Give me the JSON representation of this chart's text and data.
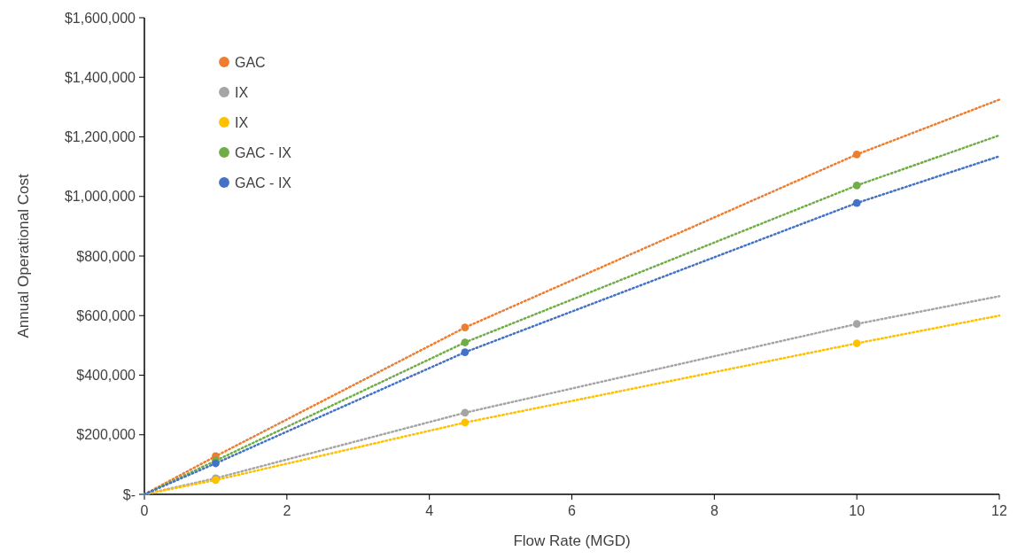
{
  "chart_data": {
    "type": "scatter",
    "xlabel": "Flow Rate (MGD)",
    "ylabel": "Annual Operational Cost",
    "x": [
      1,
      4.5,
      10
    ],
    "series": [
      {
        "name": "GAC",
        "color": "#ed7d31",
        "marker": "circle",
        "values": [
          128000,
          560000,
          1141000
        ]
      },
      {
        "name": "IX",
        "color": "#a5a5a5",
        "marker": "circle",
        "values": [
          54000,
          274000,
          572000
        ]
      },
      {
        "name": "IX",
        "color": "#ffc000",
        "marker": "circle",
        "values": [
          48000,
          241000,
          507000
        ]
      },
      {
        "name": "GAC - IX",
        "color": "#70ad47",
        "marker": "circle",
        "values": [
          113000,
          510000,
          1037000
        ]
      },
      {
        "name": "GAC - IX",
        "color": "#4472c4",
        "marker": "circle",
        "values": [
          104000,
          477000,
          978000
        ]
      },
      {
        "type": "line",
        "color": "#ed7d31",
        "x": [
          0,
          1,
          4.5,
          10,
          12
        ],
        "values": [
          0,
          128000,
          560000,
          1141000,
          1325000
        ]
      },
      {
        "type": "line",
        "color": "#a5a5a5",
        "x": [
          0,
          1,
          4.5,
          10,
          12
        ],
        "values": [
          0,
          54000,
          274000,
          572000,
          665000
        ]
      },
      {
        "type": "line",
        "color": "#ffc000",
        "x": [
          0,
          1,
          4.5,
          10,
          12
        ],
        "values": [
          0,
          48000,
          241000,
          507000,
          600000
        ]
      },
      {
        "type": "line",
        "color": "#70ad47",
        "x": [
          0,
          1,
          4.5,
          10,
          12
        ],
        "values": [
          0,
          113000,
          510000,
          1037000,
          1205000
        ]
      },
      {
        "type": "line",
        "color": "#4472c4",
        "x": [
          0,
          1,
          4.5,
          10,
          12
        ],
        "values": [
          0,
          104000,
          477000,
          978000,
          1135000
        ]
      }
    ],
    "xlim": [
      0,
      12
    ],
    "xticks": [
      0,
      2,
      4,
      6,
      8,
      10,
      12
    ],
    "ylim": [
      0,
      1600000
    ],
    "yticks": [
      {
        "value": 0,
        "label": "$-"
      },
      {
        "value": 200000,
        "label": "$200,000"
      },
      {
        "value": 400000,
        "label": "$400,000"
      },
      {
        "value": 600000,
        "label": "$600,000"
      },
      {
        "value": 800000,
        "label": "$800,000"
      },
      {
        "value": 1000000,
        "label": "$1,000,000"
      },
      {
        "value": 1200000,
        "label": "$1,200,000"
      },
      {
        "value": 1400000,
        "label": "$1,400,000"
      },
      {
        "value": 1600000,
        "label": "$1,600,000"
      }
    ],
    "grid": false,
    "legend": "top left",
    "line_style": "dotted"
  }
}
